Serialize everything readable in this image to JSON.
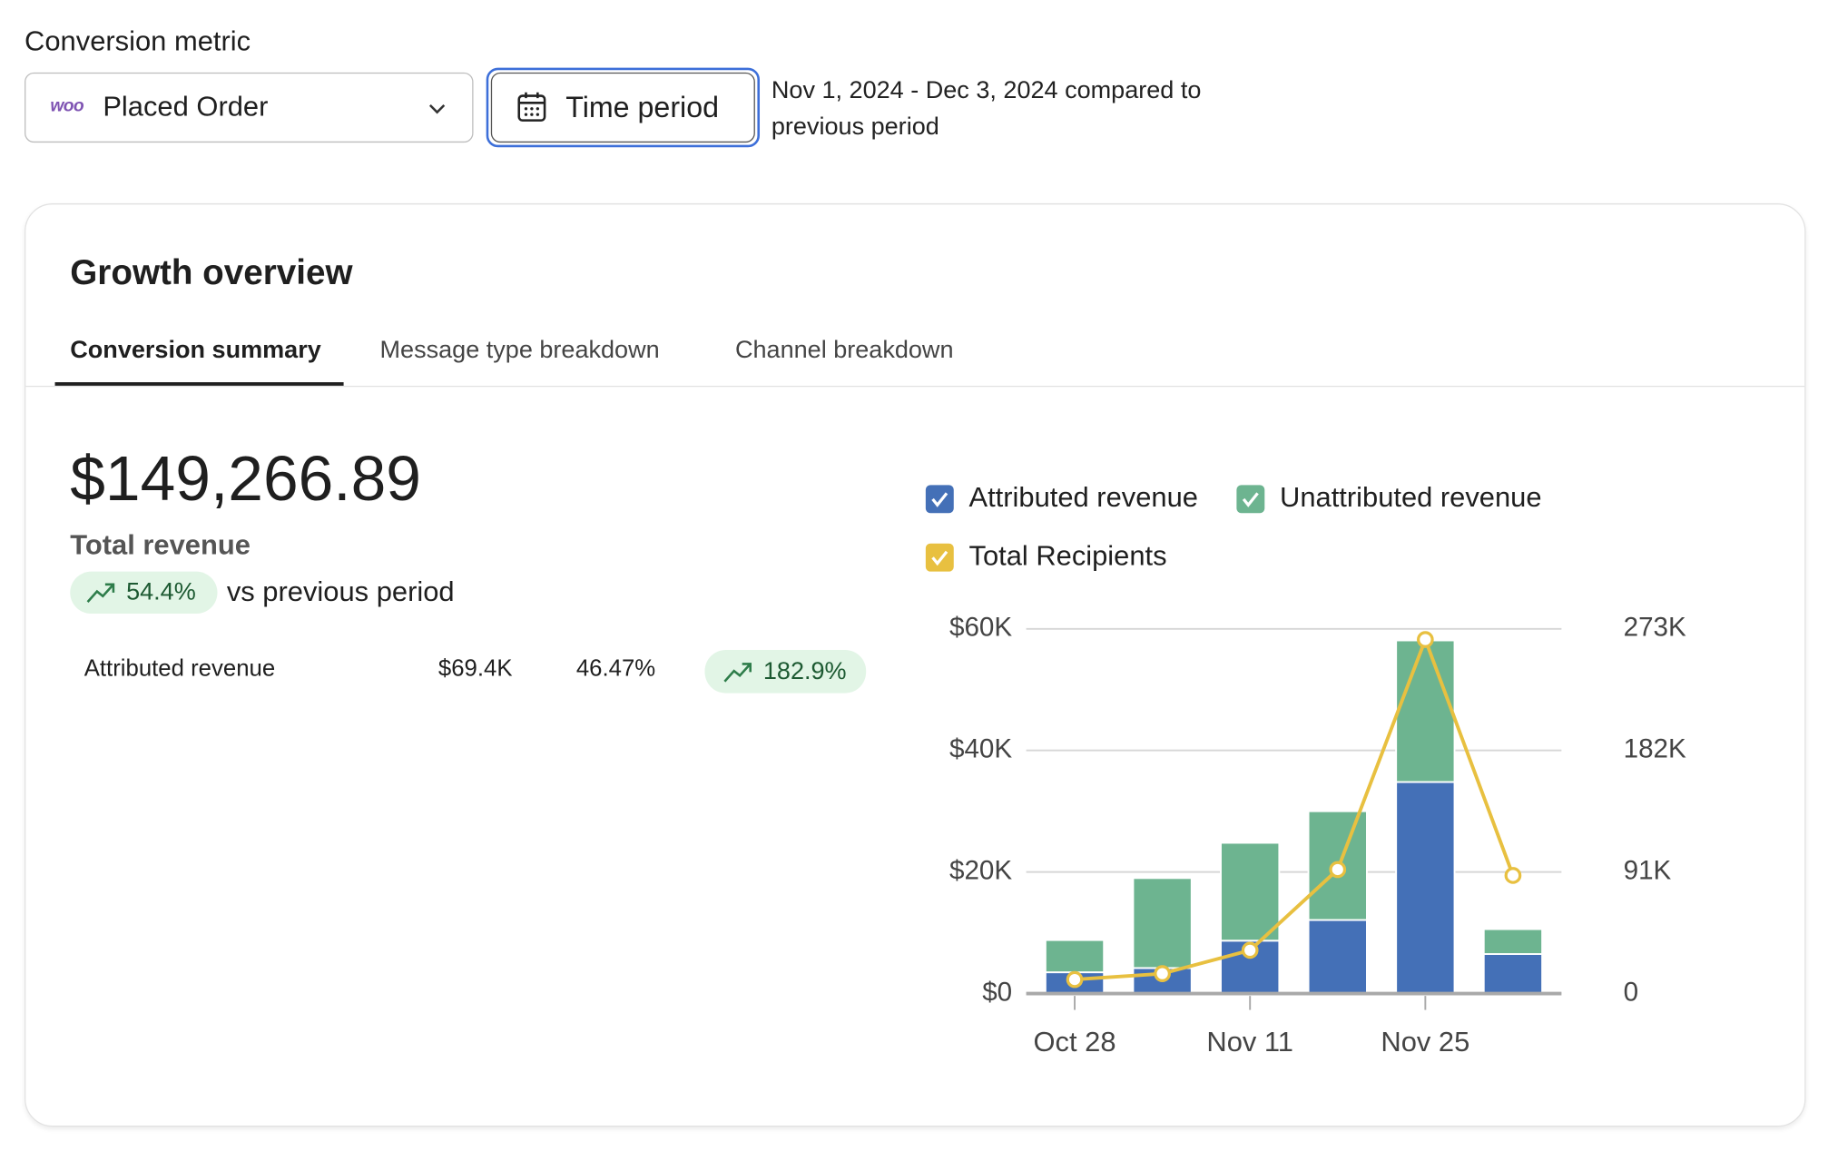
{
  "header": {
    "metric_label": "Conversion metric",
    "logo": "woo",
    "metric_value": "Placed Order",
    "button": "Time period",
    "date_range": "Nov 1, 2024 - Dec 3, 2024 compared to previous period"
  },
  "card": {
    "title": "Growth overview",
    "tabs": [
      "Conversion summary",
      "Message type breakdown",
      "Channel breakdown"
    ],
    "total": "$149,266.89",
    "total_label": "Total revenue",
    "change": "54.4%",
    "change_text": "vs previous period",
    "row": {
      "name": "Attributed revenue",
      "amount": "$69.4K",
      "share": "46.47%",
      "change": "182.9%"
    }
  },
  "chart_data": {
    "type": "bar",
    "stacked": true,
    "categories": [
      "Oct 28",
      null,
      "Nov 11",
      null,
      "Nov 25",
      null
    ],
    "series": [
      {
        "name": "Attributed revenue",
        "color": "#4470b7",
        "values": [
          3500,
          4200,
          8700,
          12100,
          34800,
          6500
        ]
      },
      {
        "name": "Unattributed revenue",
        "color": "#6db490",
        "values": [
          5300,
          14800,
          16100,
          17900,
          23300,
          4100
        ]
      },
      {
        "name": "Total Recipients",
        "color": "#e8c040",
        "type": "line",
        "axis": "y2",
        "values": [
          10500,
          14900,
          32400,
          92800,
          265000,
          88400
        ]
      }
    ],
    "ylim": [
      0,
      60000
    ],
    "yticks": [
      {
        "value": 0,
        "label": "$0"
      },
      {
        "value": 20000,
        "label": "$20K"
      },
      {
        "value": 40000,
        "label": "$40K"
      },
      {
        "value": 60000,
        "label": "$60K"
      }
    ],
    "y2lim": [
      0,
      273000
    ],
    "y2ticks": [
      0,
      {
        "value": 91000,
        "label": "91K"
      },
      {
        "value": 182000,
        "label": "182K"
      },
      {
        "value": 273000,
        "label": "273K"
      }
    ],
    "grid": true
  }
}
